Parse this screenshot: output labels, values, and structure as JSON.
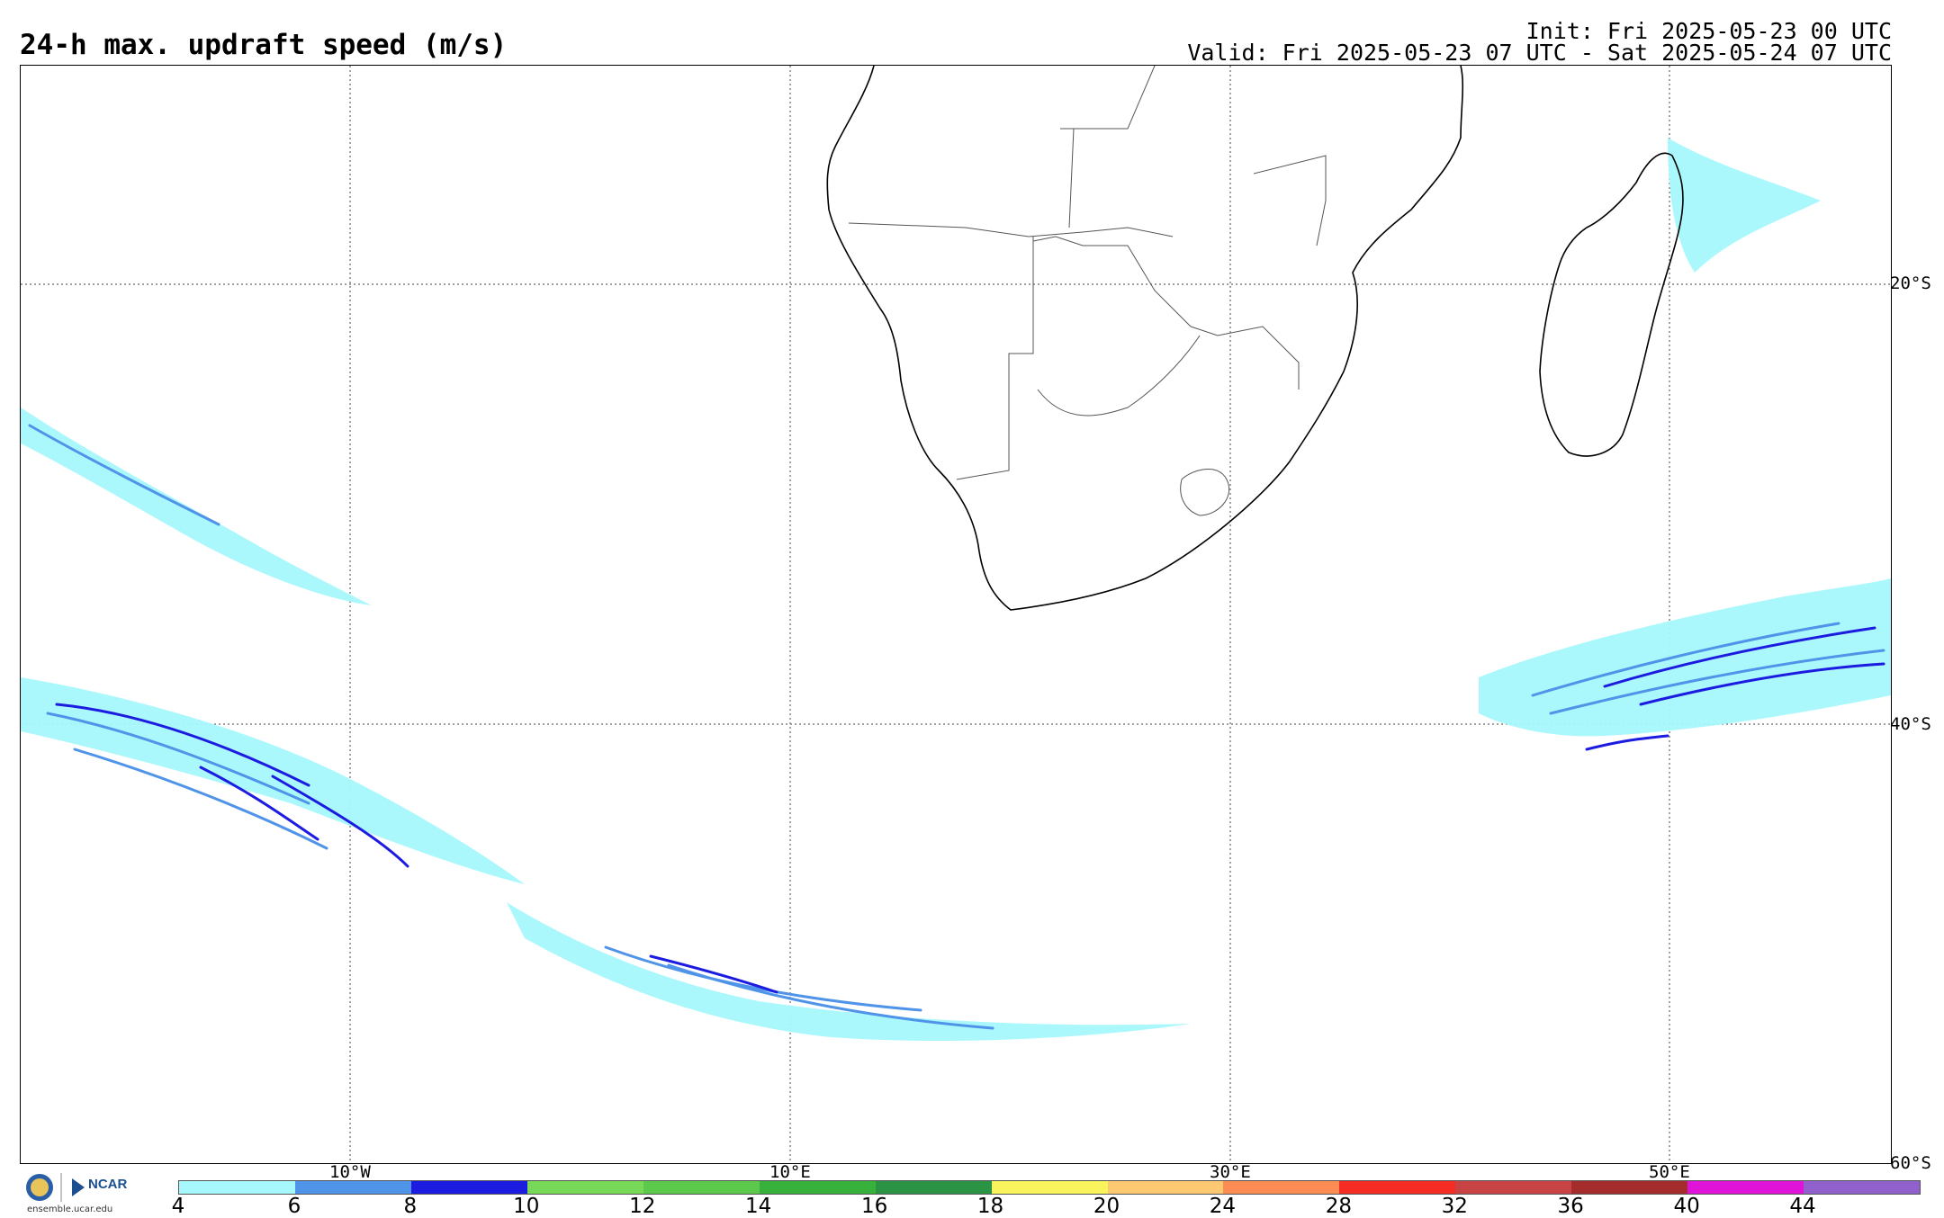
{
  "title": "24-h max. updraft speed (m/s)",
  "init": "Init: Fri 2025-05-23 00 UTC",
  "valid": "Valid: Fri 2025-05-23 07 UTC - Sat 2025-05-24 07 UTC",
  "lat_labels": [
    "20°S",
    "40°S",
    "60°S"
  ],
  "lon_labels": [
    "10°W",
    "10°E",
    "30°E",
    "50°E"
  ],
  "colorbar": {
    "ticks": [
      "4",
      "6",
      "8",
      "10",
      "12",
      "14",
      "16",
      "18",
      "20",
      "24",
      "28",
      "32",
      "36",
      "40",
      "44"
    ],
    "colors": [
      "#a6f8fc",
      "#4f94e8",
      "#1c1ce0",
      "#78d858",
      "#5cc84c",
      "#38b03c",
      "#2a9444",
      "#f9f45c",
      "#fdc872",
      "#fc8c54",
      "#f42c24",
      "#c84444",
      "#a42c2c",
      "#e014d8",
      "#9060cc"
    ]
  },
  "logo": {
    "org": "NCAR",
    "url": "ensemble.ucar.edu"
  }
}
